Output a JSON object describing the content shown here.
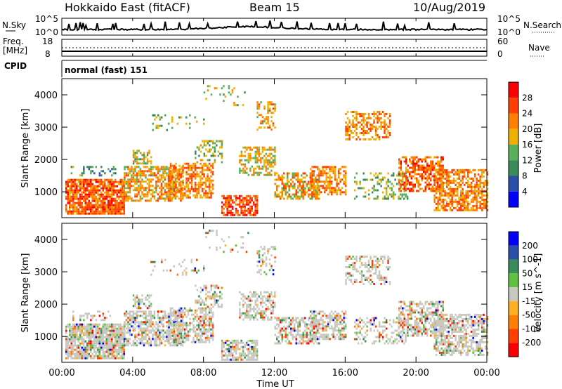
{
  "header": {
    "title": "Hokkaido East (fitACF)",
    "beam": "Beam 15",
    "date": "10/Aug/2019"
  },
  "nsky_panel": {
    "left_label": "N.Sky",
    "right_label": "N.Search",
    "left_ticks": [
      "10^5",
      "10^0"
    ],
    "right_ticks": [
      "10^5",
      "10^0"
    ]
  },
  "freq_panel": {
    "left_label_line1": "Freq.",
    "left_label_line2": "[MHz]",
    "right_label": "Nave",
    "left_ticks": [
      "18",
      "8"
    ],
    "right_ticks": [
      "60",
      "0"
    ]
  },
  "cpid_panel": {
    "label": "CPID",
    "text": "normal (fast) 151"
  },
  "colors": {
    "power_scale": [
      "#0000ff",
      "#2a4fa8",
      "#3a8a5a",
      "#5ab05a",
      "#f0b000",
      "#ff8000",
      "#ff4000",
      "#ff0000"
    ],
    "velocity_scale": [
      "#ff0000",
      "#ff4000",
      "#ff8000",
      "#ffb020",
      "#c8c8c0",
      "#60c040",
      "#3a8a5a",
      "#2a4fa8",
      "#0000ff"
    ]
  },
  "chart_data": [
    {
      "type": "heatmap",
      "name": "power",
      "ylabel": "Slant Range [km]",
      "y_ticks": [
        "1000",
        "2000",
        "3000",
        "4000"
      ],
      "ylim": [
        200,
        4500
      ],
      "xlim": [
        0,
        24
      ],
      "x_ticks": [
        "00:00",
        "04:00",
        "08:00",
        "12:00",
        "16:00",
        "20:00",
        "00:00"
      ],
      "colorbar_label": "Power [dB]",
      "colorbar_ticks": [
        "4",
        "8",
        "12",
        "16",
        "20",
        "24",
        "28"
      ],
      "colorbar_range": [
        0,
        32
      ]
    },
    {
      "type": "heatmap",
      "name": "velocity",
      "ylabel": "Slant Range [km]",
      "y_ticks": [
        "1000",
        "2000",
        "3000",
        "4000"
      ],
      "ylim": [
        200,
        4500
      ],
      "xlim": [
        0,
        24
      ],
      "x_ticks": [
        "00:00",
        "04:00",
        "08:00",
        "12:00",
        "16:00",
        "20:00",
        "00:00"
      ],
      "xlabel": "Time UT",
      "colorbar_label": "Velocity [m s^-1]",
      "colorbar_ticks": [
        "200",
        "100",
        "50",
        "15",
        "-15",
        "-50",
        "-100",
        "-200"
      ]
    }
  ]
}
